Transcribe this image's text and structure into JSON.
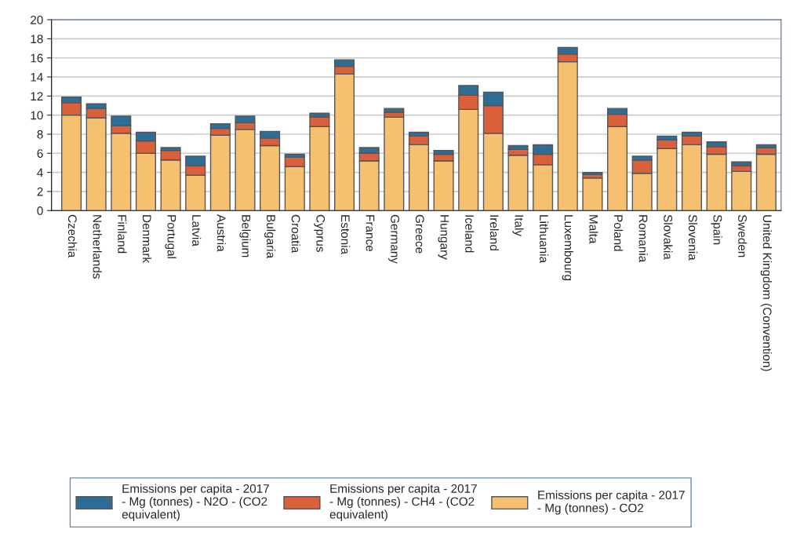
{
  "chart_data": {
    "type": "bar",
    "stacked": true,
    "categories": [
      "Czechia",
      "Netherlands",
      "Finland",
      "Denmark",
      "Portugal",
      "Latvia",
      "Austria",
      "Belgium",
      "Bulgaria",
      "Croatia",
      "Cyprus",
      "Estonia",
      "France",
      "Germany",
      "Greece",
      "Hungary",
      "Iceland",
      "Ireland",
      "Italy",
      "Lithuania",
      "Luxembourg",
      "Malta",
      "Poland",
      "Romania",
      "Slovakia",
      "Slovenia",
      "Spain",
      "Sweden",
      "United Kingdom (Convention)"
    ],
    "series": [
      {
        "name": "Emissions per capita - 2017\n- Mg (tonnes) - CO2",
        "color": "#f5c070",
        "values": [
          10.0,
          9.7,
          8.1,
          6.0,
          5.3,
          3.7,
          7.9,
          8.5,
          6.8,
          4.6,
          8.8,
          14.3,
          5.2,
          9.8,
          6.9,
          5.2,
          10.6,
          8.1,
          5.8,
          4.8,
          15.6,
          3.4,
          8.8,
          3.9,
          6.5,
          6.9,
          5.9,
          4.1,
          5.9
        ]
      },
      {
        "name": "Emissions per capita - 2017\n- Mg (tonnes) - CH4 - (CO2\nequivalent)",
        "color": "#d9603a",
        "values": [
          1.3,
          1.0,
          0.8,
          1.3,
          1.0,
          1.0,
          0.7,
          0.7,
          0.8,
          1.0,
          1.0,
          0.8,
          0.8,
          0.5,
          0.9,
          0.7,
          1.5,
          2.9,
          0.6,
          1.1,
          0.8,
          0.4,
          1.3,
          1.4,
          0.9,
          0.9,
          0.8,
          0.6,
          0.7
        ]
      },
      {
        "name": "Emissions per capita - 2017\n- Mg (tonnes) - N2O - (CO2\nequivalent)",
        "color": "#2e6e96",
        "values": [
          0.6,
          0.5,
          1.0,
          0.9,
          0.3,
          1.0,
          0.5,
          0.7,
          0.7,
          0.3,
          0.4,
          0.7,
          0.6,
          0.4,
          0.4,
          0.4,
          1.0,
          1.4,
          0.4,
          1.0,
          0.7,
          0.2,
          0.6,
          0.4,
          0.4,
          0.4,
          0.5,
          0.4,
          0.3
        ]
      }
    ],
    "ylim": [
      0,
      20
    ],
    "yticks": [
      0,
      2,
      4,
      6,
      8,
      10,
      12,
      14,
      16,
      18,
      20
    ],
    "grid": "y",
    "legend": "bottom"
  }
}
